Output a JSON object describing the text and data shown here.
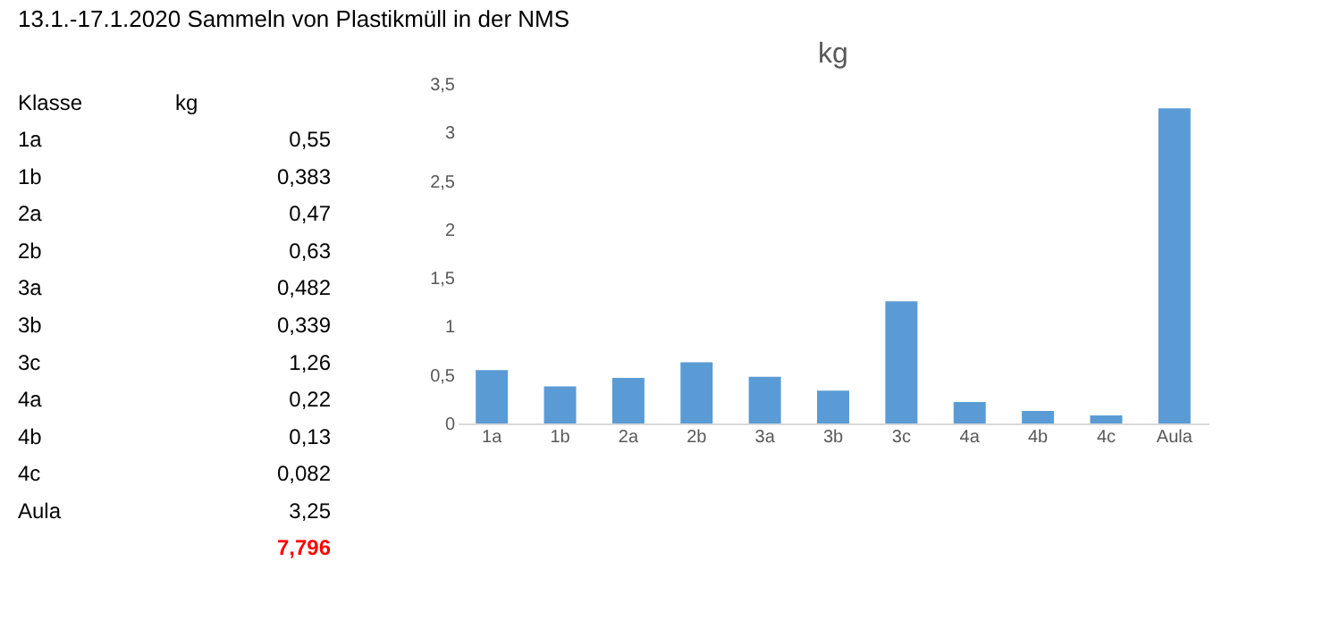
{
  "chart_data": [
    {
      "type": "other",
      "title": "13.1.-17.1.2020 Sammeln von Plastikmüll in der NMS",
      "annotations": [
        "Klasse",
        "kg",
        "1a",
        "0,55",
        "1b",
        "0,383",
        "2a",
        "0,47",
        "2b",
        "0,63",
        "3a",
        "0,482",
        "3b",
        "0,339",
        "3c",
        "1,26",
        "4a",
        "0,22",
        "4b",
        "0,13",
        "4c",
        "0,082",
        "Aula",
        "3,25",
        "7,796"
      ]
    },
    {
      "type": "bar",
      "title": "kg",
      "categories": [
        "1a",
        "1b",
        "2a",
        "2b",
        "3a",
        "3b",
        "3c",
        "4a",
        "4b",
        "4c",
        "Aula"
      ],
      "values": [
        0.55,
        0.383,
        0.47,
        0.63,
        0.482,
        0.339,
        1.26,
        0.22,
        0.13,
        0.082,
        3.25
      ],
      "color": "#5b9bd5",
      "ylim": [
        0,
        3.5
      ],
      "yticks": [
        0,
        {
          "value": 0.5,
          "label": "0,5"
        },
        1,
        {
          "value": 1.5,
          "label": "1,5"
        },
        2,
        {
          "value": 2.5,
          "label": "2,5"
        },
        3,
        {
          "value": 3.5,
          "label": "3,5"
        }
      ],
      "grid": false
    }
  ]
}
